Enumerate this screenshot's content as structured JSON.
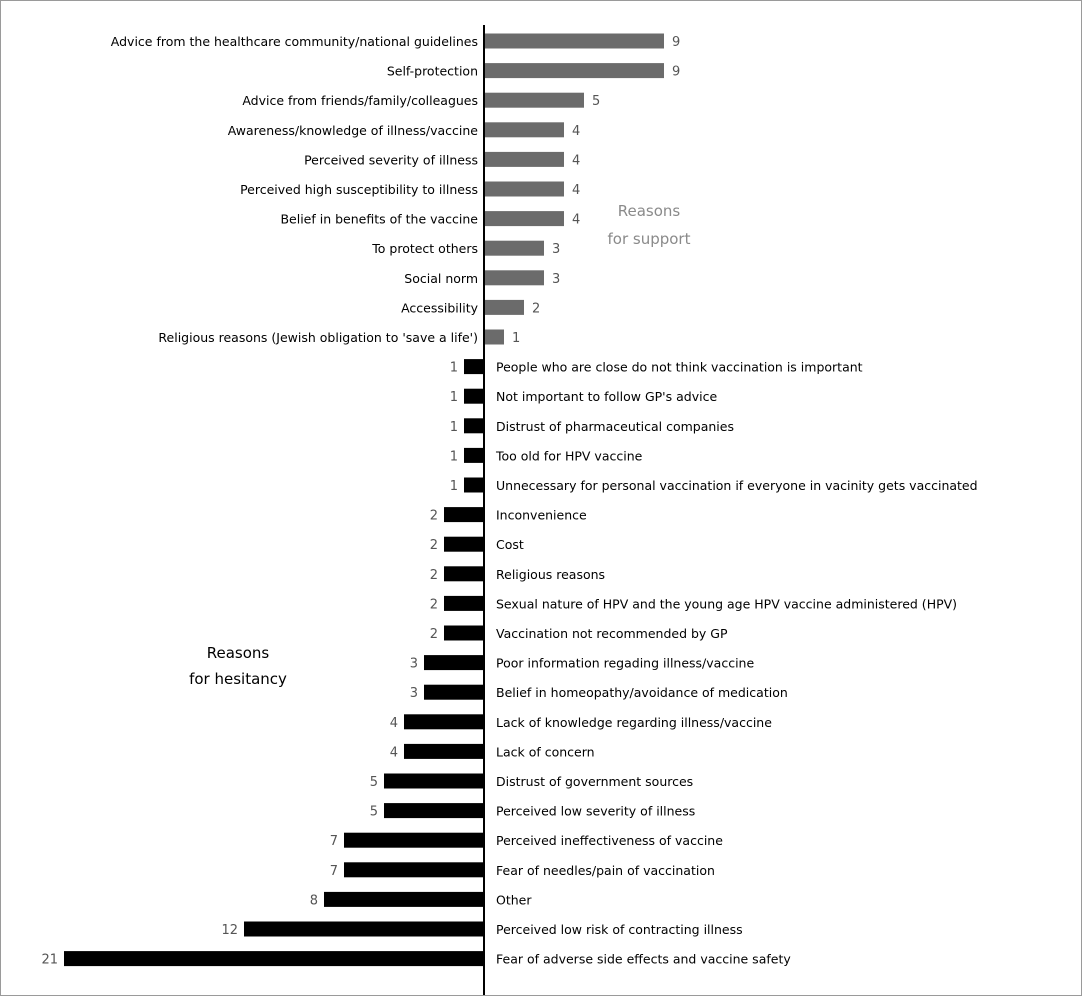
{
  "chart_data": {
    "type": "bar",
    "orientation": "horizontal-diverging",
    "title": "",
    "xlabel": "",
    "ylabel": "",
    "group_labels": {
      "support": [
        "Reasons",
        "for support"
      ],
      "hesitancy": [
        "Reasons",
        "for hesitancy"
      ]
    },
    "colors": {
      "support": "#6b6b6b",
      "hesitancy": "#000000"
    },
    "series": [
      {
        "name": "Reasons for support",
        "categories": [
          "Advice from the healthcare community/national guidelines",
          "Self-protection",
          "Advice from friends/family/colleagues",
          "Awareness/knowledge of illness/vaccine",
          "Perceived severity of illness",
          "Perceived high susceptibility to illness",
          "Belief in benefits of the vaccine",
          "To protect others",
          "Social norm",
          "Accessibility",
          "Religious reasons (Jewish obligation to 'save a life')"
        ],
        "values": [
          9,
          9,
          5,
          4,
          4,
          4,
          4,
          3,
          3,
          2,
          1
        ]
      },
      {
        "name": "Reasons for hesitancy",
        "categories": [
          "People who are close do not think vaccination is important",
          "Not important to follow GP's advice",
          "Distrust of pharmaceutical companies",
          "Too old for HPV vaccine",
          "Unnecessary for personal vaccination if everyone in vacinity gets vaccinated",
          "Inconvenience",
          "Cost",
          "Religious reasons",
          "Sexual nature of HPV and the young age HPV vaccine administered (HPV)",
          "Vaccination not recommended by GP",
          "Poor information regading illness/vaccine",
          "Belief in homeopathy/avoidance of medication",
          "Lack of knowledge regarding illness/vaccine",
          "Lack of concern",
          "Distrust of government sources",
          "Perceived low severity of illness",
          "Perceived ineffectiveness of vaccine",
          "Fear of needles/pain of vaccination",
          "Other",
          "Perceived low risk of contracting illness",
          "Fear of adverse side effects and vaccine safety"
        ],
        "values": [
          1,
          1,
          1,
          1,
          1,
          2,
          2,
          2,
          2,
          2,
          3,
          3,
          4,
          4,
          5,
          5,
          7,
          7,
          8,
          12,
          21
        ]
      }
    ]
  }
}
